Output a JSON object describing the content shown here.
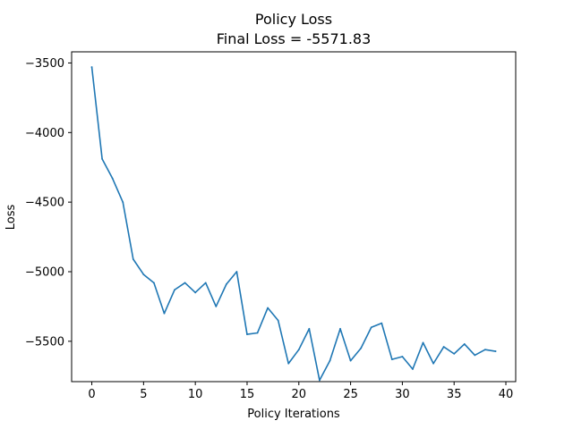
{
  "chart_data": {
    "type": "line",
    "title": "Policy Loss",
    "subtitle": "Final Loss = -5571.83",
    "xlabel": "Policy Iterations",
    "ylabel": "Loss",
    "xlim": [
      -1.95,
      40.95
    ],
    "ylim": [
      -5790,
      -3420
    ],
    "x_ticks": [
      0,
      5,
      10,
      15,
      20,
      25,
      30,
      35,
      40
    ],
    "y_ticks": [
      -3500,
      -4000,
      -4500,
      -5000,
      -5500
    ],
    "y_tick_labels": [
      "−3500",
      "−4000",
      "−4500",
      "−5000",
      "−5500"
    ],
    "grid": false,
    "line_color": "#1f77b4",
    "x": [
      0,
      1,
      2,
      3,
      4,
      5,
      6,
      7,
      8,
      9,
      10,
      11,
      12,
      13,
      14,
      15,
      16,
      17,
      18,
      19,
      20,
      21,
      22,
      23,
      24,
      25,
      26,
      27,
      28,
      29,
      30,
      31,
      32,
      33,
      34,
      35,
      36,
      37,
      38,
      39
    ],
    "y": [
      -3530,
      -4190,
      -4330,
      -4500,
      -4910,
      -5020,
      -5080,
      -5300,
      -5130,
      -5080,
      -5150,
      -5080,
      -5250,
      -5090,
      -5000,
      -5450,
      -5440,
      -5260,
      -5350,
      -5660,
      -5560,
      -5410,
      -5780,
      -5640,
      -5410,
      -5640,
      -5550,
      -5400,
      -5370,
      -5630,
      -5610,
      -5700,
      -5510,
      -5660,
      -5540,
      -5590,
      -5520,
      -5600,
      -5560,
      -5571.83
    ]
  }
}
